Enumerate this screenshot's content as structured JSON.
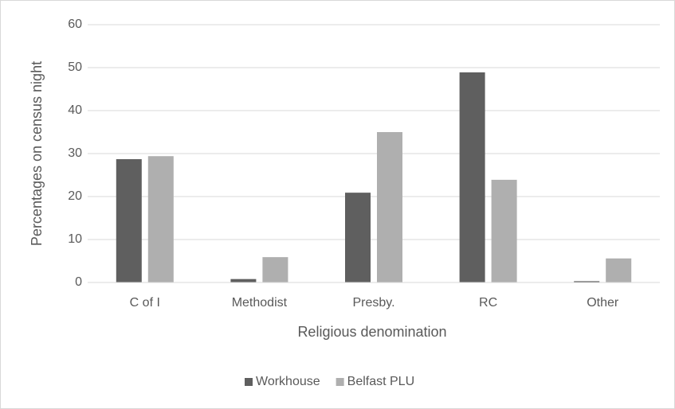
{
  "chart_data": {
    "type": "bar",
    "xlabel": "Religious denomination",
    "ylabel": "Percentages on census night",
    "categories": [
      "C of I",
      "Methodist",
      "Presby.",
      "RC",
      "Other"
    ],
    "series": [
      {
        "name": "Workhouse",
        "color": "#5f5f5f",
        "values": [
          28.7,
          0.8,
          20.9,
          48.9,
          0.3
        ]
      },
      {
        "name": "Belfast PLU",
        "color": "#afafaf",
        "values": [
          29.4,
          5.9,
          35.0,
          23.9,
          5.6
        ]
      }
    ],
    "ylim": [
      0,
      60
    ],
    "yticks": [
      0,
      10,
      20,
      30,
      40,
      50,
      60
    ],
    "grid": true,
    "legend": "bottom"
  }
}
